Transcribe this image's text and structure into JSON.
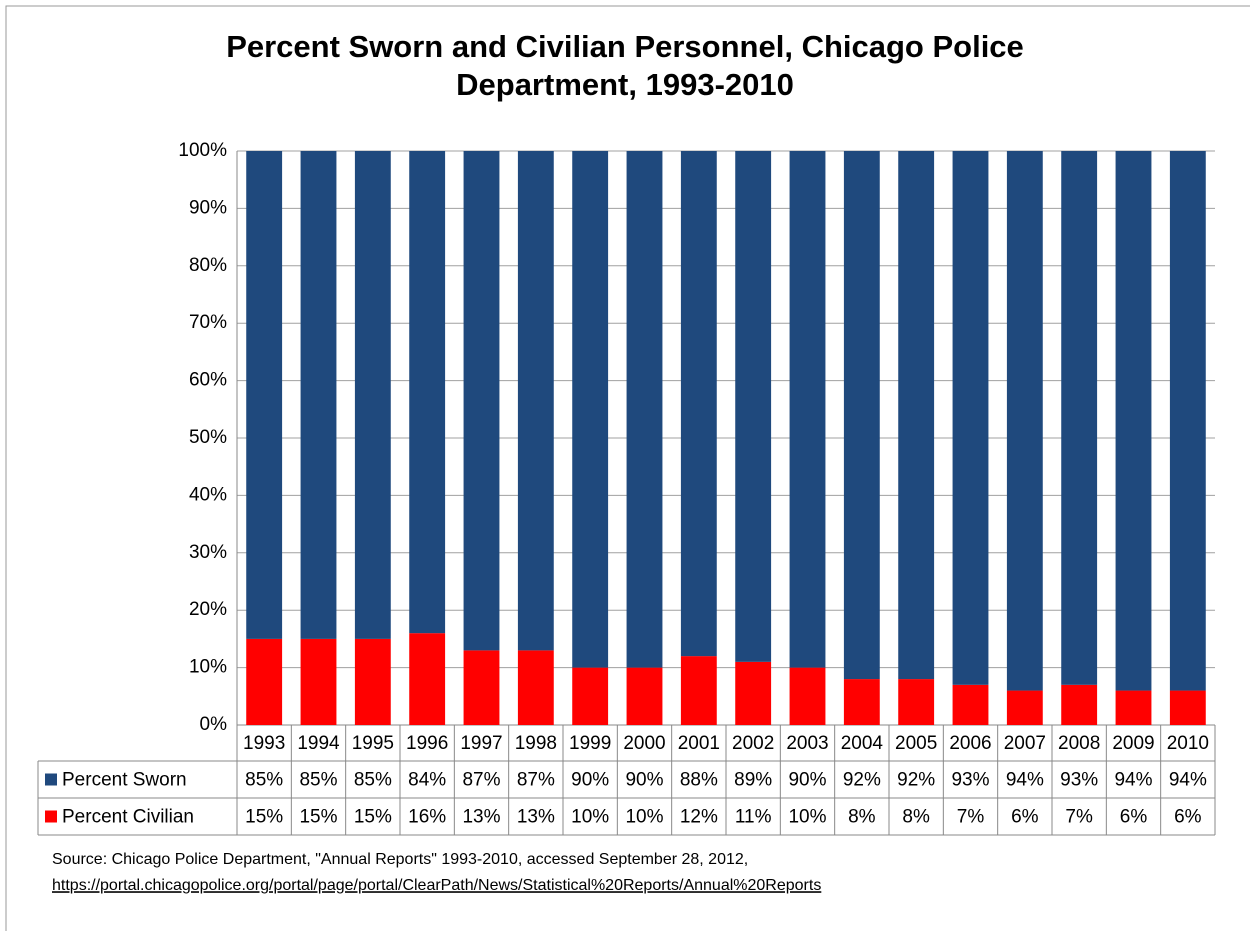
{
  "chart_data": {
    "type": "bar",
    "title": "Percent Sworn and Civilian Personnel, Chicago Police Department, 1993-2010",
    "stacked": true,
    "categories": [
      "1993",
      "1994",
      "1995",
      "1996",
      "1997",
      "1998",
      "1999",
      "2000",
      "2001",
      "2002",
      "2003",
      "2004",
      "2005",
      "2006",
      "2007",
      "2008",
      "2009",
      "2010"
    ],
    "series": [
      {
        "name": "Percent Sworn",
        "color": "#1f497d",
        "values": [
          85,
          85,
          85,
          84,
          87,
          87,
          90,
          90,
          88,
          89,
          90,
          92,
          92,
          93,
          94,
          93,
          94,
          94
        ],
        "value_labels": [
          "85%",
          "85%",
          "85%",
          "84%",
          "87%",
          "87%",
          "90%",
          "90%",
          "88%",
          "89%",
          "90%",
          "92%",
          "92%",
          "93%",
          "94%",
          "93%",
          "94%",
          "94%"
        ]
      },
      {
        "name": "Percent Civilian",
        "color": "#ff0000",
        "values": [
          15,
          15,
          15,
          16,
          13,
          13,
          10,
          10,
          12,
          11,
          10,
          8,
          8,
          7,
          6,
          7,
          6,
          6
        ],
        "value_labels": [
          "15%",
          "15%",
          "15%",
          "16%",
          "13%",
          "13%",
          "10%",
          "10%",
          "12%",
          "11%",
          "10%",
          "8%",
          "8%",
          "7%",
          "6%",
          "7%",
          "6%",
          "6%"
        ]
      }
    ],
    "ylim": [
      0,
      100
    ],
    "yticks": [
      {
        "value": 0,
        "label": "0%"
      },
      {
        "value": 10,
        "label": "10%"
      },
      {
        "value": 20,
        "label": "20%"
      },
      {
        "value": 30,
        "label": "30%"
      },
      {
        "value": 40,
        "label": "40%"
      },
      {
        "value": 50,
        "label": "50%"
      },
      {
        "value": 60,
        "label": "60%"
      },
      {
        "value": 70,
        "label": "70%"
      },
      {
        "value": 80,
        "label": "80%"
      },
      {
        "value": 90,
        "label": "90%"
      },
      {
        "value": 100,
        "label": "100%"
      }
    ],
    "grid": true,
    "source": "Source: Chicago Police Department, \"Annual Reports\" 1993-2010,  accessed September 28, 2012,",
    "source_url": "https://portal.chicagopolice.org/portal/page/portal/ClearPath/News/Statistical%20Reports/Annual%20Reports"
  }
}
